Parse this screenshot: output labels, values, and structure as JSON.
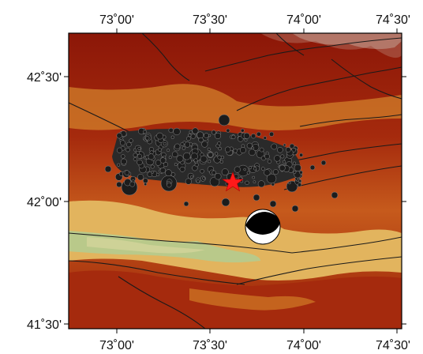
{
  "map": {
    "longitude_ticks": [
      "73˚00'",
      "73˚30'",
      "74˚00'",
      "74˚30'"
    ],
    "latitude_ticks": [
      "42˚30'",
      "42˚00'",
      "41˚30'"
    ],
    "layers": {
      "relief": "shaded-topography",
      "faults": "black-lines",
      "earthquakes": "black-circles-sized-by-magnitude",
      "mainshock": "red-star",
      "focal_mechanism": "beachball"
    },
    "colors": {
      "low_elevation": "#b9c98a",
      "mid_elevation": "#d98a2a",
      "high_elevation": "#8c1708",
      "peak_elevation": "#c9b4a8",
      "star": "#ff1a1a",
      "events": "#1c1c1c"
    }
  }
}
